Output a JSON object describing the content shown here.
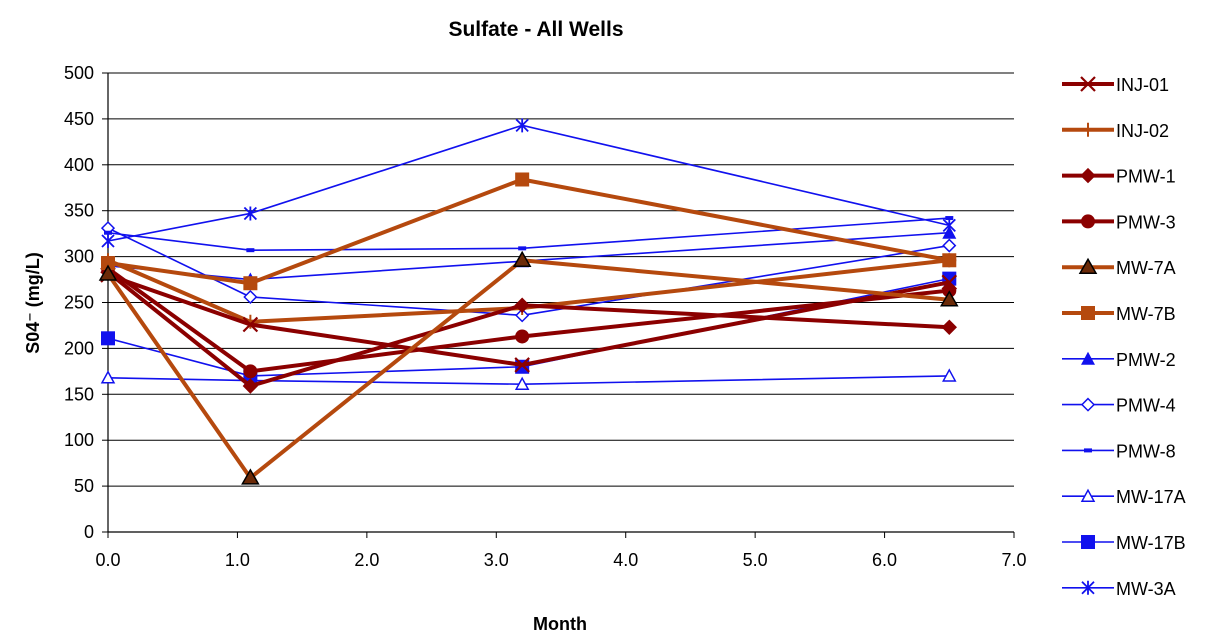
{
  "chart_data": {
    "type": "line",
    "title": "Sulfate - All Wells",
    "xlabel": "Month",
    "ylabel": "S04⁻ (mg/L)",
    "xlim": [
      0,
      7
    ],
    "ylim": [
      0,
      500
    ],
    "x_ticks": [
      "0.0",
      "1.0",
      "2.0",
      "3.0",
      "4.0",
      "5.0",
      "6.0",
      "7.0"
    ],
    "y_ticks": [
      "0",
      "50",
      "100",
      "150",
      "200",
      "250",
      "300",
      "350",
      "400",
      "450",
      "500"
    ],
    "grid": "horizontal major gridlines",
    "legend_position": "right",
    "series": [
      {
        "name": "INJ-01",
        "color": "#8b0000",
        "marker": "x",
        "weight": "thick",
        "points": [
          [
            0.0,
            280
          ],
          [
            1.1,
            226
          ],
          [
            3.2,
            182
          ],
          [
            6.5,
            272
          ]
        ]
      },
      {
        "name": "INJ-02",
        "color": "#b5490e",
        "marker": "plus",
        "weight": "thick",
        "points": [
          [
            0.0,
            296
          ],
          [
            1.1,
            229
          ],
          [
            3.2,
            244
          ],
          [
            6.5,
            296
          ]
        ]
      },
      {
        "name": "PMW-1",
        "color": "#8b0000",
        "marker": "diamond",
        "weight": "thick",
        "points": [
          [
            0.0,
            283
          ],
          [
            1.1,
            159
          ],
          [
            3.2,
            247
          ],
          [
            6.5,
            223
          ]
        ]
      },
      {
        "name": "PMW-3",
        "color": "#8b0000",
        "marker": "circle",
        "weight": "thick",
        "points": [
          [
            0.0,
            287
          ],
          [
            1.1,
            175
          ],
          [
            3.2,
            213
          ],
          [
            6.5,
            263
          ]
        ]
      },
      {
        "name": "MW-7A",
        "color": "#b5490e",
        "marker": "triangle",
        "weight": "thick",
        "points": [
          [
            0.0,
            281
          ],
          [
            1.1,
            59
          ],
          [
            3.2,
            296
          ],
          [
            6.5,
            253
          ]
        ]
      },
      {
        "name": "MW-7B",
        "color": "#b5490e",
        "marker": "square",
        "weight": "thick",
        "points": [
          [
            0.0,
            293
          ],
          [
            1.1,
            271
          ],
          [
            3.2,
            384
          ],
          [
            6.5,
            296
          ]
        ]
      },
      {
        "name": "PMW-2",
        "color": "#1111ee",
        "marker": "triangle",
        "weight": "thin",
        "points": [
          [
            0.0,
            290
          ],
          [
            1.1,
            275
          ],
          [
            3.2,
            295
          ],
          [
            6.5,
            326
          ]
        ]
      },
      {
        "name": "PMW-4",
        "color": "#1111ee",
        "marker": "diamond-open",
        "weight": "thin",
        "points": [
          [
            0.0,
            331
          ],
          [
            1.1,
            256
          ],
          [
            3.2,
            236
          ],
          [
            6.5,
            312
          ]
        ]
      },
      {
        "name": "PMW-8",
        "color": "#1111ee",
        "marker": "dash",
        "weight": "thin",
        "points": [
          [
            0.0,
            326
          ],
          [
            1.1,
            307
          ],
          [
            3.2,
            309
          ],
          [
            6.5,
            342
          ]
        ]
      },
      {
        "name": "MW-17A",
        "color": "#1111ee",
        "marker": "triangle-open",
        "weight": "thin",
        "points": [
          [
            0.0,
            168
          ],
          [
            1.1,
            165
          ],
          [
            3.2,
            161
          ],
          [
            6.5,
            170
          ]
        ]
      },
      {
        "name": "MW-17B",
        "color": "#1111ee",
        "marker": "square",
        "weight": "thin",
        "points": [
          [
            0.0,
            211
          ],
          [
            1.1,
            170
          ],
          [
            3.2,
            180
          ],
          [
            6.5,
            276
          ]
        ]
      },
      {
        "name": "MW-3A",
        "color": "#1111ee",
        "marker": "asterisk",
        "weight": "thin",
        "points": [
          [
            0.0,
            317
          ],
          [
            1.1,
            347
          ],
          [
            3.2,
            443
          ],
          [
            6.5,
            334
          ]
        ]
      }
    ]
  }
}
